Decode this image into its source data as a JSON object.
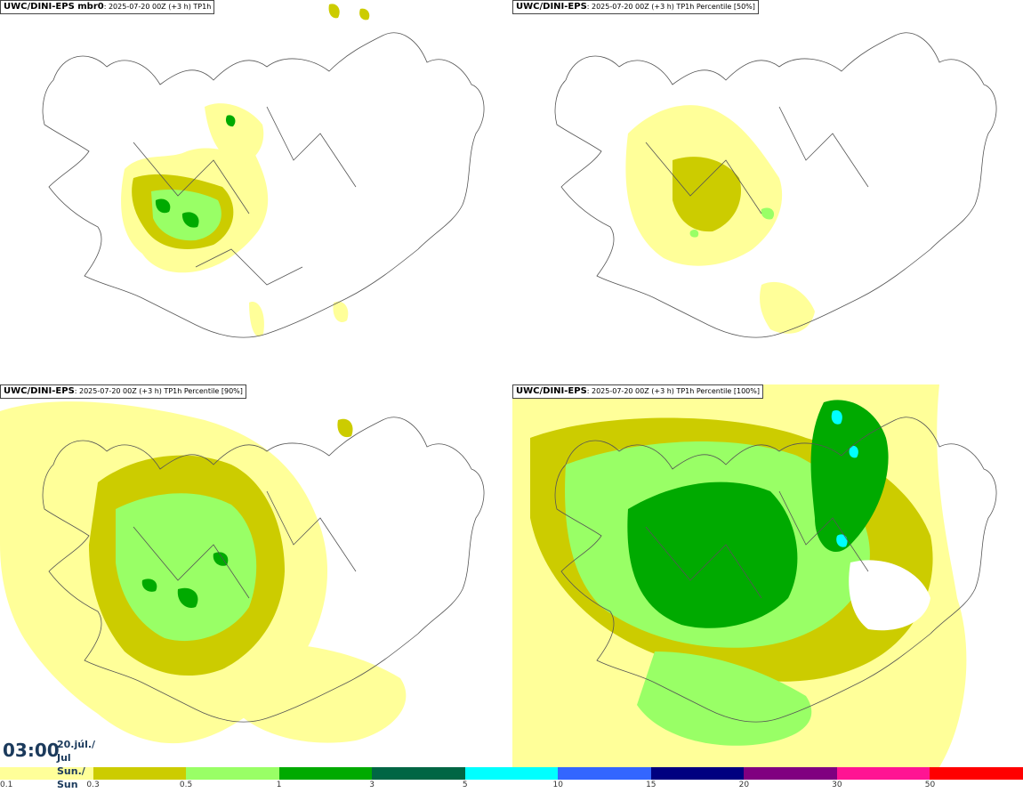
{
  "panels": [
    {
      "title_bold": "UWC/DINI-EPS mbr0",
      "title_rest": ": 2025-07-20 00Z (+3 h) TP1h",
      "run_text": ""
    },
    {
      "title_bold": "UWC/DINI-EPS",
      "title_rest": ": 2025-07-20 00Z (+3 h) TP1h Percentile [50%]",
      "run_text": ""
    },
    {
      "title_bold": "UWC/DINI-EPS",
      "title_rest": ": 2025-07-20 00Z (+3 h) TP1h Percentile [90%]",
      "run_text": ""
    },
    {
      "title_bold": "UWC/DINI-EPS",
      "title_rest": ": 2025-07-20 00Z (+3 h) TP1h Percentile [100%]",
      "run_text": ""
    }
  ],
  "time": {
    "clock": "03:00",
    "date_line1": "20.júl./ Jul",
    "date_line2": "Sun./ Sun"
  },
  "colorbar": {
    "colors": [
      "#ffff99",
      "#cccc00",
      "#99ff66",
      "#00aa00",
      "#006644",
      "#00ffff",
      "#3366ff",
      "#000080",
      "#800080",
      "#ff1493",
      "#ff0000"
    ],
    "labels": [
      "0.1",
      "0.3",
      "0.5",
      "1",
      "3",
      "5",
      "10",
      "15",
      "20",
      "30",
      "50"
    ]
  },
  "precip_colors": {
    "light": "#ffff99",
    "low": "#cccc00",
    "mid": "#99ff66",
    "high": "#00aa00",
    "higher": "#006644",
    "peak": "#00ffff"
  },
  "coastline_color": "#555555"
}
